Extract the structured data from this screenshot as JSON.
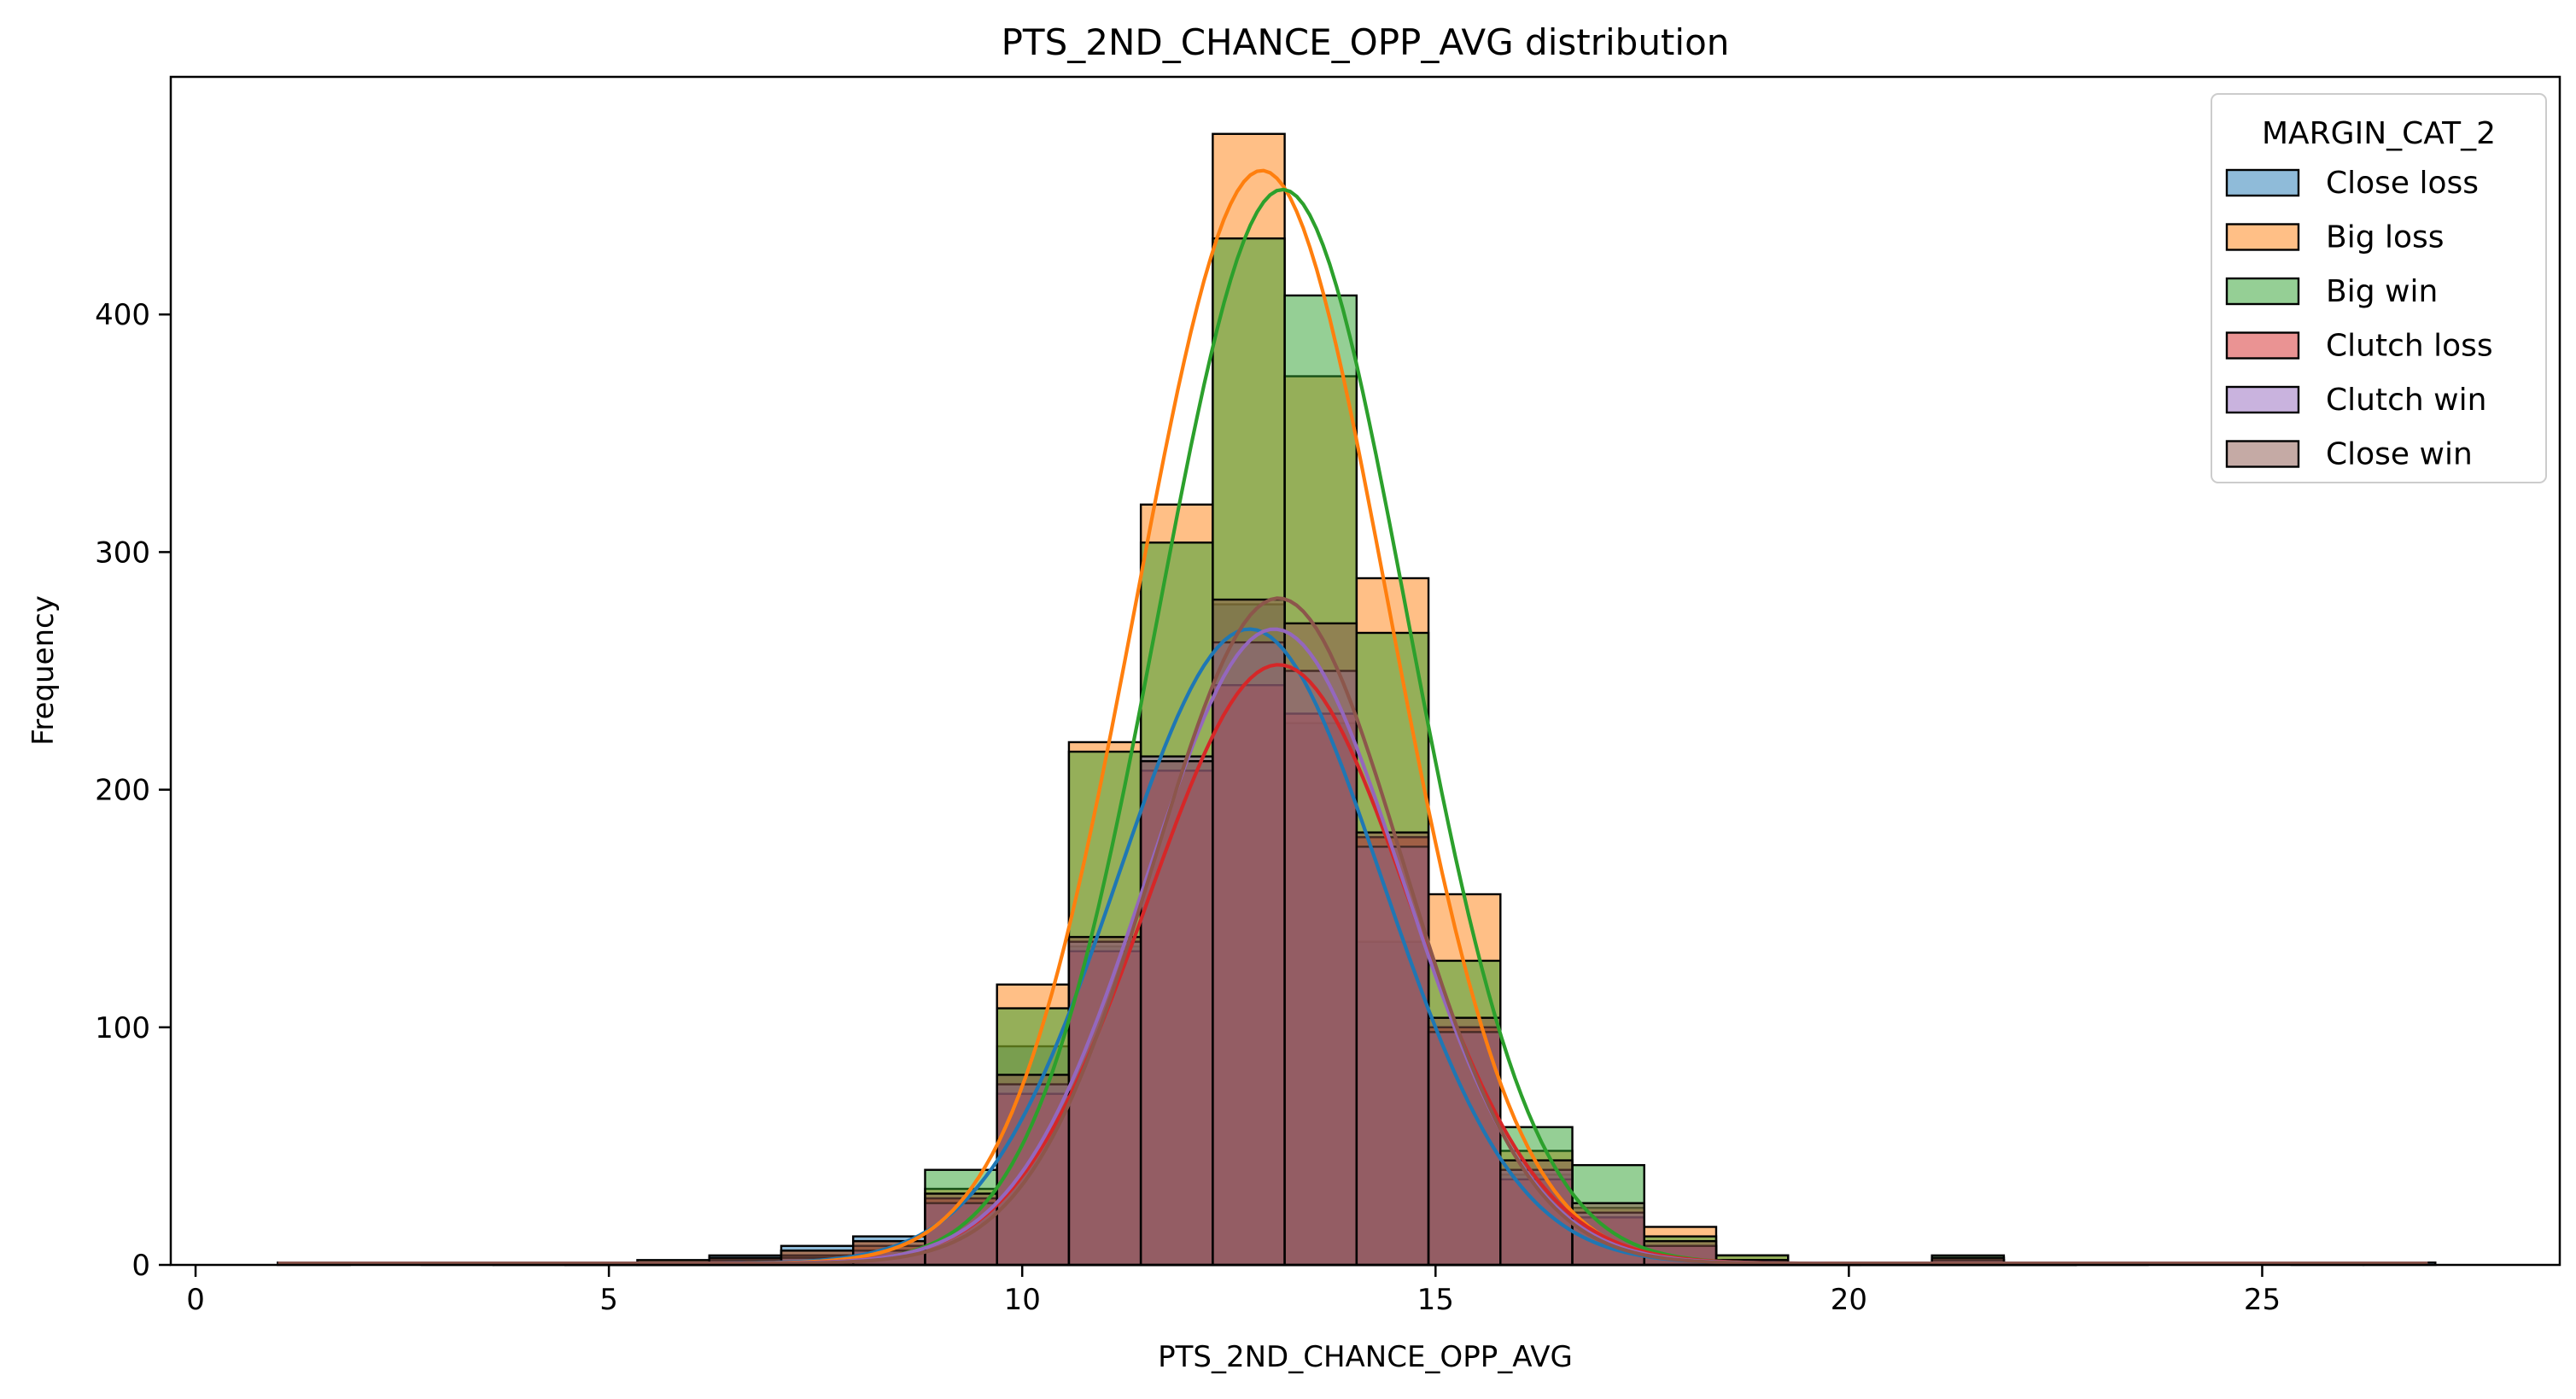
{
  "chart_data": {
    "type": "bar",
    "title": "PTS_2ND_CHANCE_OPP_AVG distribution",
    "xlabel": "PTS_2ND_CHANCE_OPP_AVG",
    "ylabel": "Frequency",
    "xlim": [
      -0.3,
      28.6
    ],
    "ylim": [
      0,
      500
    ],
    "xticks": [
      0,
      5,
      10,
      15,
      20,
      25
    ],
    "yticks": [
      0,
      100,
      200,
      300,
      400
    ],
    "grid": false,
    "legend": {
      "title": "MARGIN_CAT_2",
      "placement": "top-right"
    },
    "bin_width": 0.87,
    "bin_centers": [
      1.43,
      2.3,
      3.17,
      4.04,
      4.91,
      5.78,
      6.65,
      7.52,
      8.39,
      9.26,
      10.13,
      11.0,
      11.87,
      12.74,
      13.61,
      14.48,
      15.35,
      16.22,
      17.09,
      17.96,
      18.83,
      19.7,
      20.57,
      21.44,
      22.31,
      23.18,
      24.05,
      24.92,
      25.79,
      26.66
    ],
    "series": [
      {
        "name": "Close loss",
        "color": "#1f77b4",
        "values": [
          1,
          0,
          1,
          1,
          1,
          2,
          4,
          8,
          12,
          28,
          92,
          134,
          212,
          278,
          228,
          136,
          100,
          38,
          20,
          8,
          2,
          1,
          1,
          2,
          1,
          1,
          0,
          0,
          1,
          1
        ]
      },
      {
        "name": "Big loss",
        "color": "#ff7f0e",
        "values": [
          0,
          0,
          0,
          1,
          1,
          2,
          3,
          6,
          10,
          32,
          118,
          220,
          320,
          476,
          374,
          289,
          156,
          48,
          24,
          16,
          4,
          1,
          1,
          3,
          1,
          0,
          0,
          0,
          0,
          0
        ]
      },
      {
        "name": "Big win",
        "color": "#2ca02c",
        "values": [
          0,
          0,
          0,
          0,
          1,
          1,
          2,
          4,
          8,
          40,
          108,
          216,
          304,
          432,
          408,
          266,
          128,
          58,
          42,
          12,
          4,
          1,
          1,
          4,
          1,
          0,
          0,
          0,
          0,
          0
        ]
      },
      {
        "name": "Clutch loss",
        "color": "#d62728",
        "values": [
          0,
          0,
          0,
          0,
          0,
          1,
          2,
          4,
          8,
          28,
          72,
          132,
          208,
          244,
          232,
          180,
          100,
          36,
          20,
          8,
          2,
          1,
          0,
          2,
          0,
          0,
          0,
          0,
          0,
          0
        ]
      },
      {
        "name": "Clutch win",
        "color": "#9467bd",
        "values": [
          0,
          0,
          0,
          0,
          0,
          1,
          2,
          3,
          6,
          26,
          76,
          136,
          214,
          262,
          250,
          176,
          98,
          40,
          22,
          8,
          2,
          1,
          0,
          2,
          0,
          0,
          0,
          0,
          0,
          0
        ]
      },
      {
        "name": "Close win",
        "color": "#8c564b",
        "values": [
          0,
          0,
          0,
          0,
          1,
          1,
          3,
          6,
          10,
          30,
          80,
          138,
          212,
          280,
          270,
          182,
          104,
          44,
          26,
          10,
          2,
          1,
          1,
          3,
          1,
          0,
          0,
          0,
          0,
          0
        ]
      }
    ],
    "kde": [
      {
        "name": "Close loss",
        "color": "#1f77b4",
        "mean": 12.75,
        "sd": 1.6,
        "peak": 267
      },
      {
        "name": "Big loss",
        "color": "#ff7f0e",
        "mean": 12.9,
        "sd": 1.52,
        "peak": 460
      },
      {
        "name": "Big win",
        "color": "#2ca02c",
        "mean": 13.15,
        "sd": 1.5,
        "peak": 452
      },
      {
        "name": "Clutch loss",
        "color": "#d62728",
        "mean": 13.1,
        "sd": 1.58,
        "peak": 252
      },
      {
        "name": "Clutch win",
        "color": "#9467bd",
        "mean": 13.05,
        "sd": 1.55,
        "peak": 267
      },
      {
        "name": "Close win",
        "color": "#8c564b",
        "mean": 13.1,
        "sd": 1.5,
        "peak": 280
      }
    ]
  }
}
